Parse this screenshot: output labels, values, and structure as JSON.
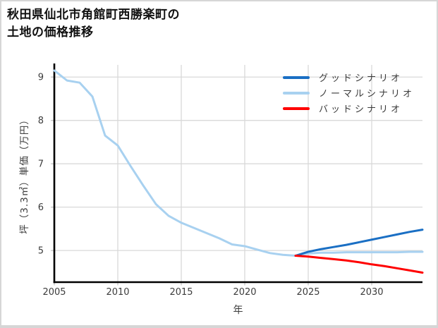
{
  "title": {
    "line1": "秋田県仙北市角館町西勝楽町の",
    "line2": "土地の価格推移"
  },
  "chart_data": {
    "type": "line",
    "title": "秋田県仙北市角館町西勝楽町の土地の価格推移",
    "xlabel": "年",
    "ylabel": "坪（3.3㎡）単価（万円）",
    "xlim": [
      2005,
      2034
    ],
    "ylim": [
      4.27,
      9.28
    ],
    "x_ticks": [
      2005,
      2010,
      2015,
      2020,
      2025,
      2030
    ],
    "y_ticks": [
      5,
      6,
      7,
      8,
      9
    ],
    "grid": true,
    "legend_position": "top-right",
    "plot_order": [
      1,
      0,
      2
    ],
    "colors": {
      "grid": "#d9d9d9",
      "spine": "#000000",
      "tick": "#c6c6c6",
      "tick_label": "#3c3c3c"
    },
    "series": [
      {
        "name": "グッドシナリオ",
        "color": "#1a6fc4",
        "x": [
          2024,
          2025,
          2026,
          2027,
          2028,
          2029,
          2030,
          2031,
          2032,
          2033,
          2034
        ],
        "values": [
          4.88,
          4.97,
          5.03,
          5.08,
          5.13,
          5.19,
          5.25,
          5.31,
          5.37,
          5.43,
          5.48
        ]
      },
      {
        "name": "ノーマルシナリオ",
        "color": "#a8d1f0",
        "x": [
          2005,
          2006,
          2007,
          2008,
          2009,
          2010,
          2011,
          2012,
          2013,
          2014,
          2015,
          2016,
          2017,
          2018,
          2019,
          2020,
          2021,
          2022,
          2023,
          2024,
          2025,
          2026,
          2027,
          2028,
          2029,
          2030,
          2031,
          2032,
          2033,
          2034
        ],
        "values": [
          9.15,
          8.92,
          8.87,
          8.55,
          7.65,
          7.42,
          6.95,
          6.5,
          6.07,
          5.8,
          5.64,
          5.52,
          5.4,
          5.28,
          5.14,
          5.1,
          5.02,
          4.94,
          4.9,
          4.88,
          4.93,
          4.95,
          4.95,
          4.96,
          4.96,
          4.96,
          4.96,
          4.96,
          4.97,
          4.97
        ]
      },
      {
        "name": "バッドシナリオ",
        "color": "#ff0000",
        "x": [
          2024,
          2025,
          2026,
          2027,
          2028,
          2029,
          2030,
          2031,
          2032,
          2033,
          2034
        ],
        "values": [
          4.88,
          4.86,
          4.83,
          4.8,
          4.77,
          4.73,
          4.68,
          4.64,
          4.59,
          4.54,
          4.49
        ]
      }
    ]
  }
}
